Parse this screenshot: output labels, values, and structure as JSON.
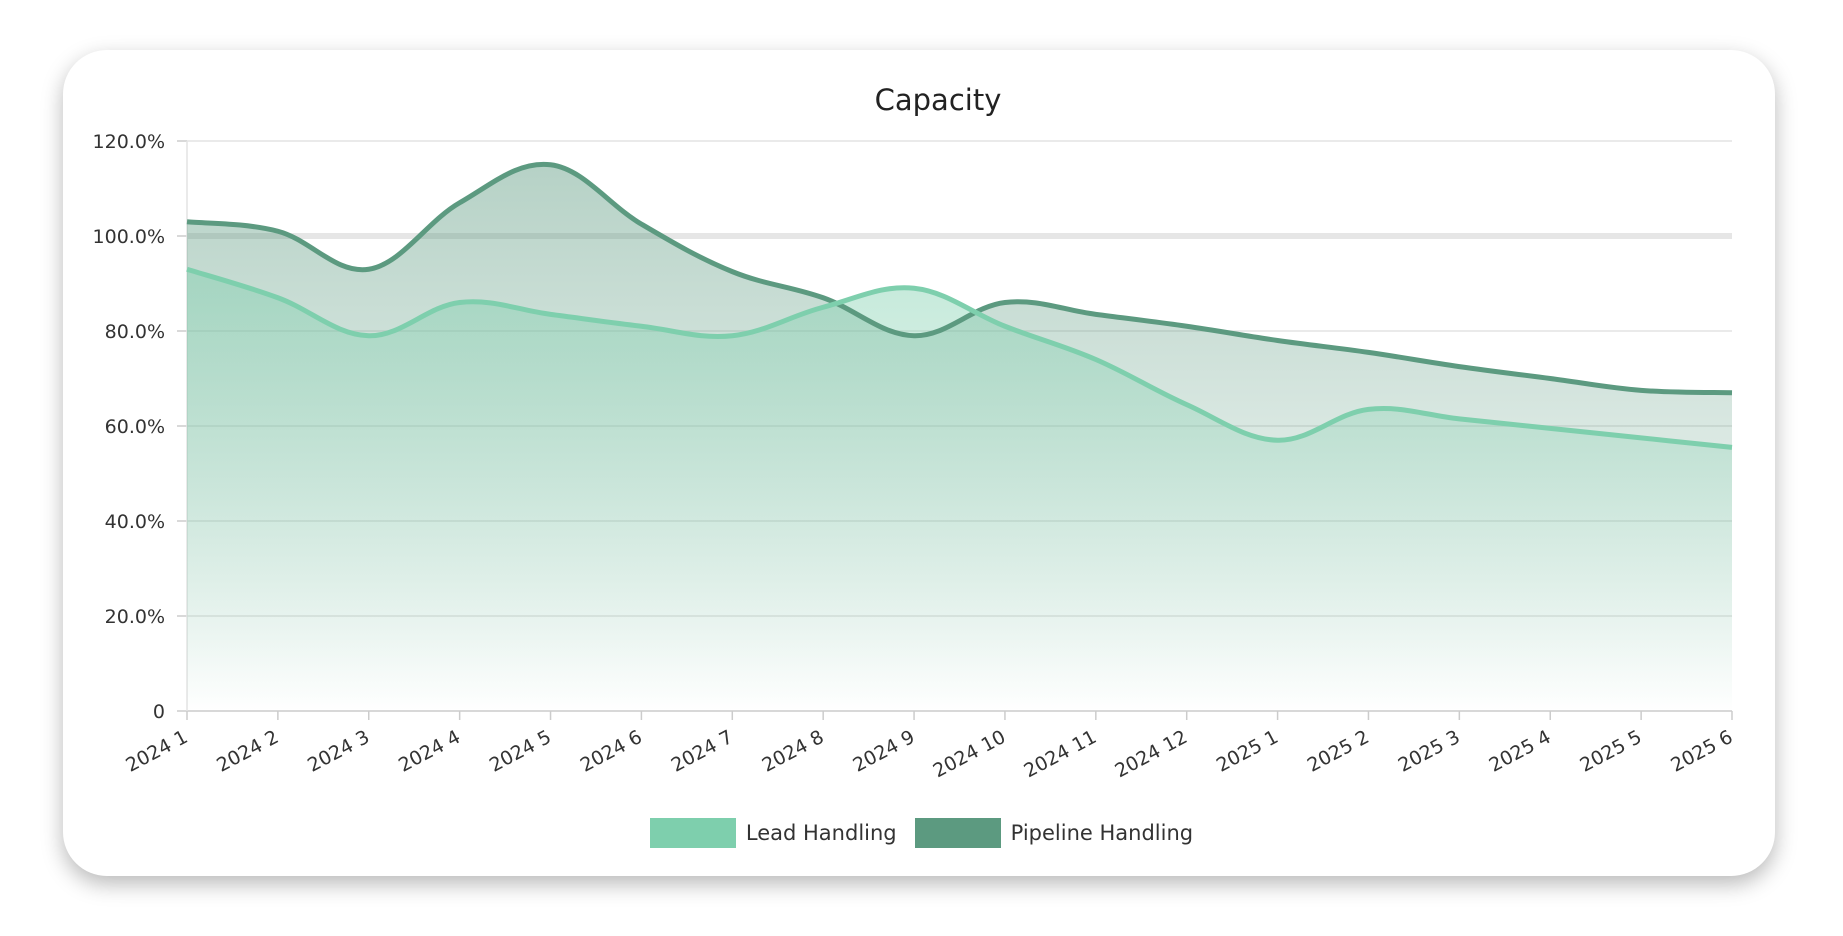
{
  "chart_data": {
    "type": "area",
    "title": "Capacity",
    "categories": [
      "2024 1",
      "2024 2",
      "2024 3",
      "2024 4",
      "2024 5",
      "2024 6",
      "2024 7",
      "2024 8",
      "2024 9",
      "2024 10",
      "2024 11",
      "2024 12",
      "2025 1",
      "2025 2",
      "2025 3",
      "2025 4",
      "2025 5",
      "2025 6"
    ],
    "series": [
      {
        "name": "Lead Handling",
        "color": "#7ecfad",
        "values": [
          93,
          87,
          79,
          86,
          83.5,
          81,
          79,
          85,
          89,
          81,
          74,
          64.5,
          57,
          63.5,
          61.5,
          59.5,
          57.5,
          55.5
        ]
      },
      {
        "name": "Pipeline Handling",
        "color": "#5c9a80",
        "values": [
          103,
          101,
          93,
          107,
          115,
          102.5,
          92.5,
          87,
          79,
          86,
          83.5,
          81,
          78,
          75.5,
          72.5,
          70,
          67.5,
          67
        ]
      }
    ],
    "yticks": [
      "0",
      "20.0%",
      "40.0%",
      "60.0%",
      "80.0%",
      "100.0%",
      "120.0%"
    ],
    "ylim": [
      0,
      120
    ],
    "reference_line": 100,
    "grid": true,
    "legend": "bottom"
  }
}
